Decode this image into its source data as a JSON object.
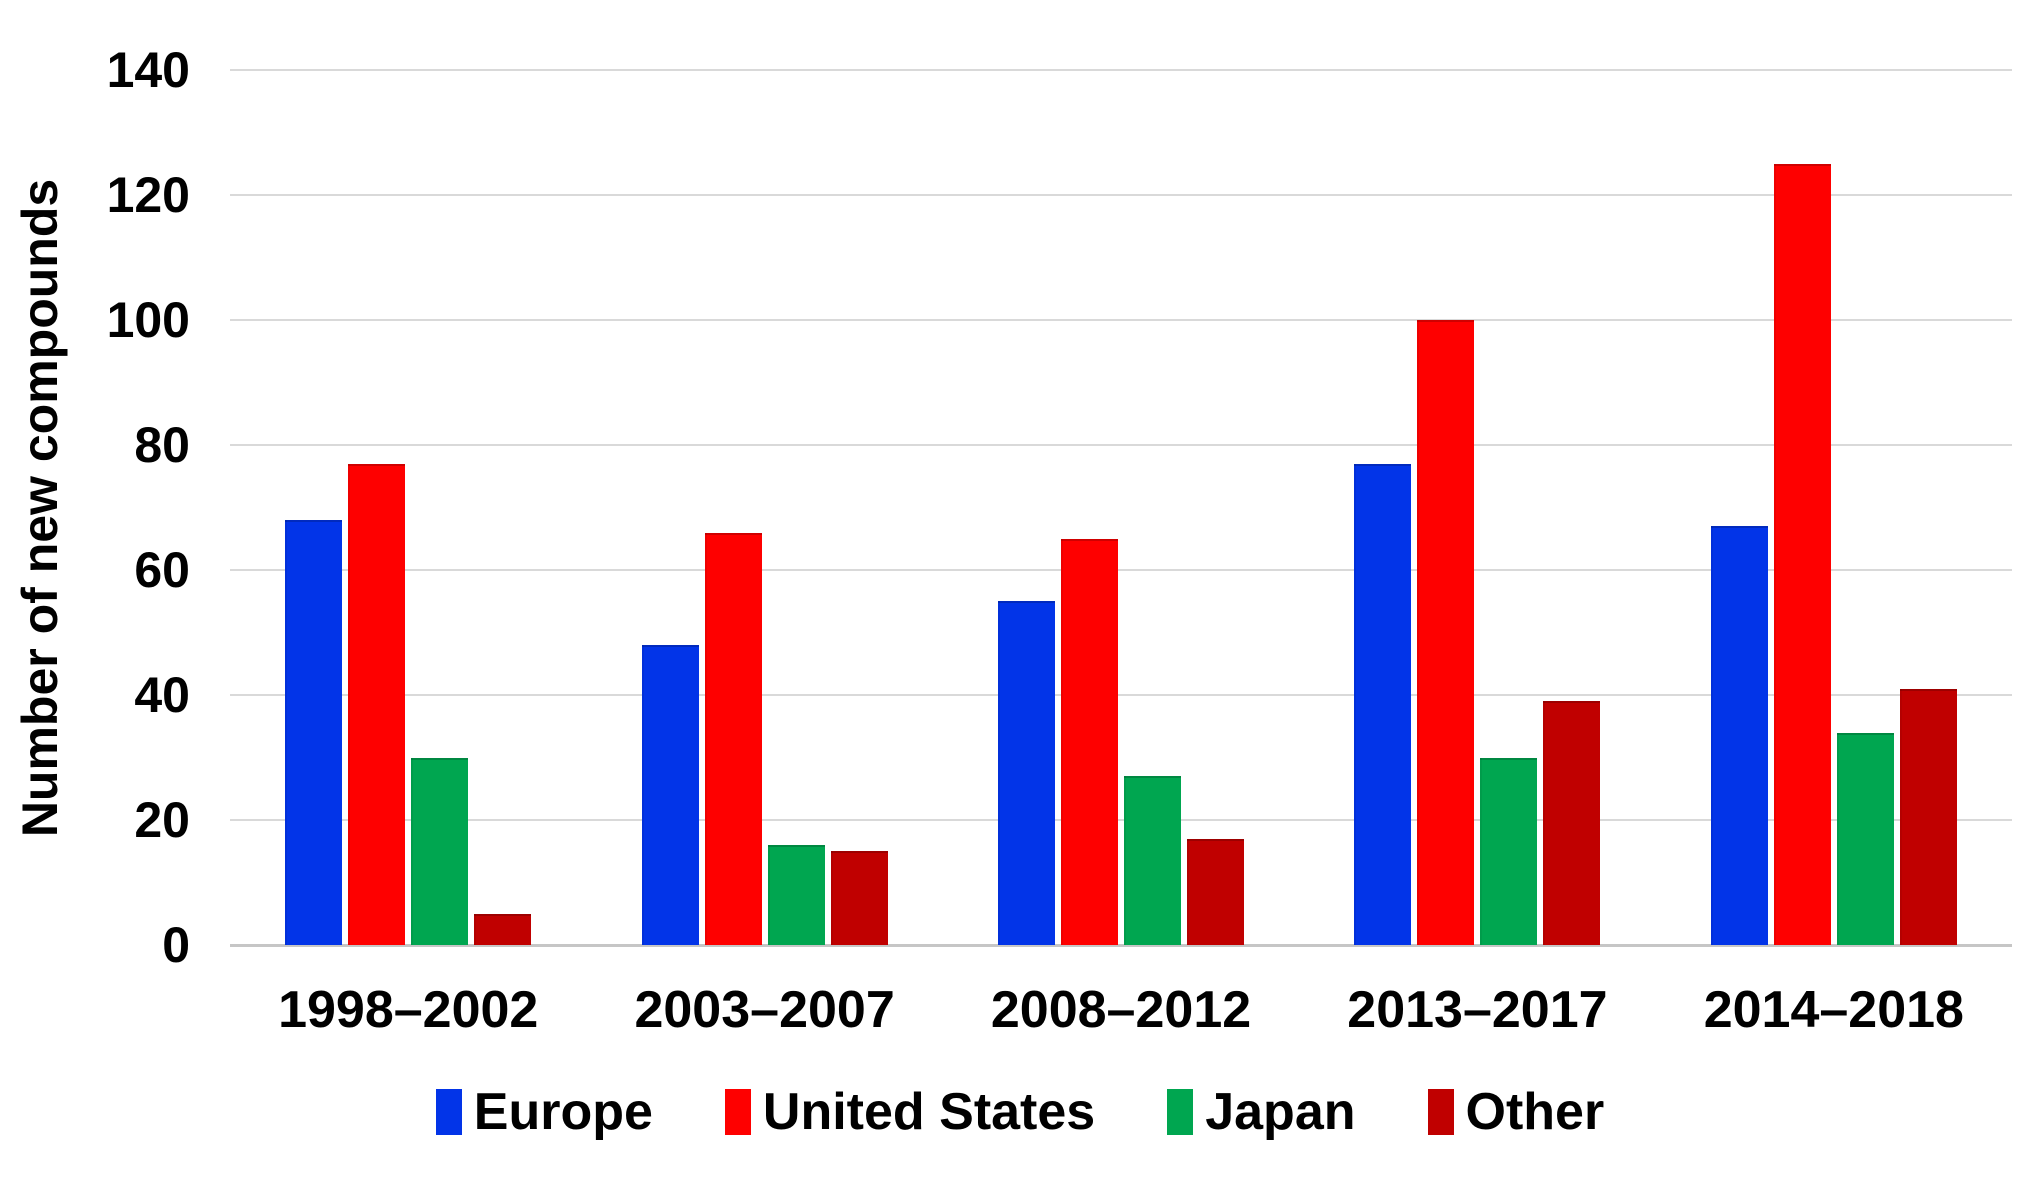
{
  "chart_data": {
    "type": "bar",
    "categories": [
      "1998–2002",
      "2003–2007",
      "2008–2012",
      "2013–2017",
      "2014–2018"
    ],
    "series": [
      {
        "name": "Europe",
        "color": "#0234e8",
        "values": [
          68,
          48,
          55,
          77,
          67
        ]
      },
      {
        "name": "United States",
        "color": "#fe0000",
        "values": [
          77,
          66,
          65,
          100,
          125
        ]
      },
      {
        "name": "Japan",
        "color": "#00a650",
        "values": [
          30,
          16,
          27,
          30,
          34
        ]
      },
      {
        "name": "Other",
        "color": "#c00000",
        "values": [
          5,
          15,
          17,
          39,
          41
        ]
      }
    ],
    "title": "",
    "xlabel": "",
    "ylabel": "Number of new compounds",
    "ylim": [
      0,
      140
    ],
    "yticks": [
      0,
      20,
      40,
      60,
      80,
      100,
      120,
      140
    ],
    "grid": "horizontal",
    "legend_position": "bottom"
  },
  "colors": {
    "gridline": "#d9d9d9",
    "axis_line": "#c6c6c6",
    "text": "#000000",
    "background": "#ffffff"
  }
}
